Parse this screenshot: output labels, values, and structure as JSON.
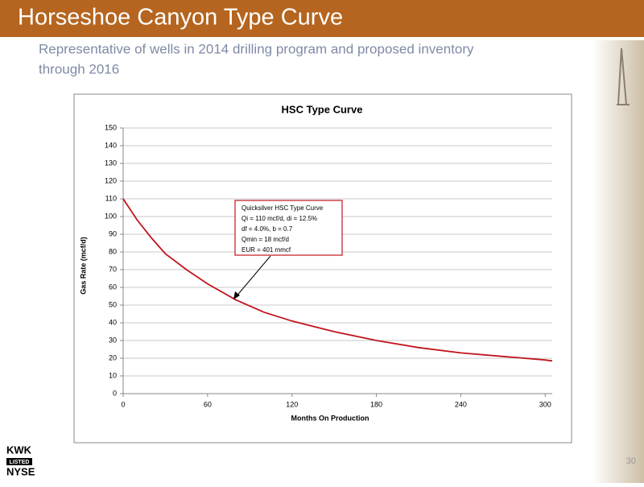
{
  "header": {
    "title": "Horseshoe Canyon Type Curve"
  },
  "subtitle": [
    "Representative of wells in 2014 drilling program and proposed inventory",
    "through 2016"
  ],
  "chart_data": {
    "type": "line",
    "title": "HSC Type Curve",
    "x_label": "Months On Production",
    "y_label": "Gas Rate (mcf/d)",
    "x": [
      0,
      10,
      20,
      30,
      45,
      60,
      80,
      100,
      120,
      150,
      180,
      210,
      240,
      270,
      300,
      305
    ],
    "series": [
      {
        "name": "Quicksilver HSC Type Curve",
        "color": "#c0141c",
        "values": [
          110,
          98,
          88,
          79,
          70,
          62,
          53,
          46,
          41,
          35,
          30,
          26,
          23,
          21,
          19,
          18.5
        ]
      }
    ],
    "xlim": [
      0,
      305
    ],
    "xticks": [
      0,
      60,
      120,
      180,
      240,
      300
    ],
    "ylim": [
      0,
      150
    ],
    "yticks": [
      0,
      10,
      20,
      30,
      40,
      50,
      60,
      70,
      80,
      90,
      100,
      110,
      120,
      130,
      140,
      150
    ],
    "grid": true,
    "annotation": [
      "Quicksilver HSC Type Curve",
      "Qi = 110 mcf/d, di = 12.5%",
      "df = 4.0%, b = 0.7",
      "Qmin = 18 mcf/d",
      "EUR = 401 mmcf"
    ]
  },
  "logo": [
    "KWK",
    "LISTED",
    "NYSE"
  ],
  "page_number": "30"
}
